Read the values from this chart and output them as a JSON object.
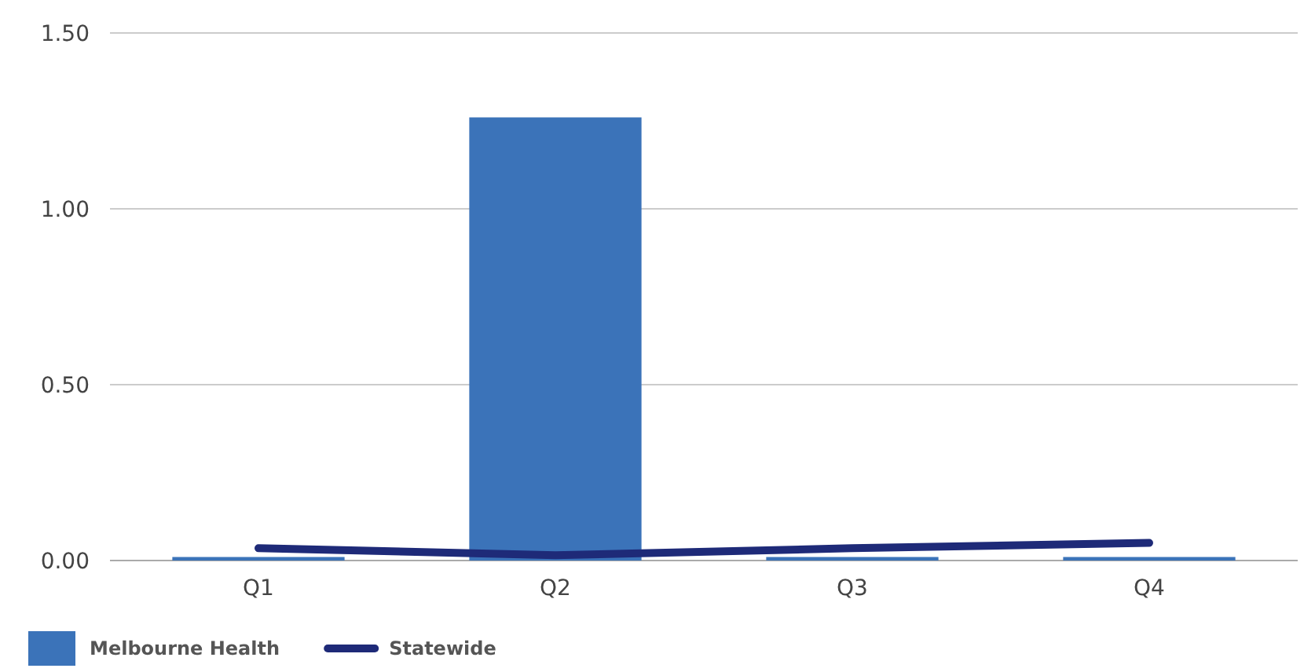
{
  "chart_data": {
    "type": "bar",
    "categories": [
      "Q1",
      "Q2",
      "Q3",
      "Q4"
    ],
    "series": [
      {
        "name": "Melbourne Health",
        "color": "#3b73b9",
        "values": [
          0.01,
          1.26,
          0.01,
          0.01
        ]
      },
      {
        "name": "Statewide",
        "type": "line",
        "color": "#1e2a78",
        "values": [
          0.035,
          0.015,
          0.035,
          0.05
        ]
      }
    ],
    "ylim": [
      0,
      1.5
    ],
    "yticks": [
      {
        "value": 0,
        "label": "0.00"
      },
      {
        "value": 0.5,
        "label": "0.50"
      },
      {
        "value": 1,
        "label": "1.00"
      },
      {
        "value": 1.5,
        "label": "1.50"
      }
    ],
    "grid": "y",
    "legend": "bottom left",
    "marker": "none",
    "line_style": "solid"
  }
}
